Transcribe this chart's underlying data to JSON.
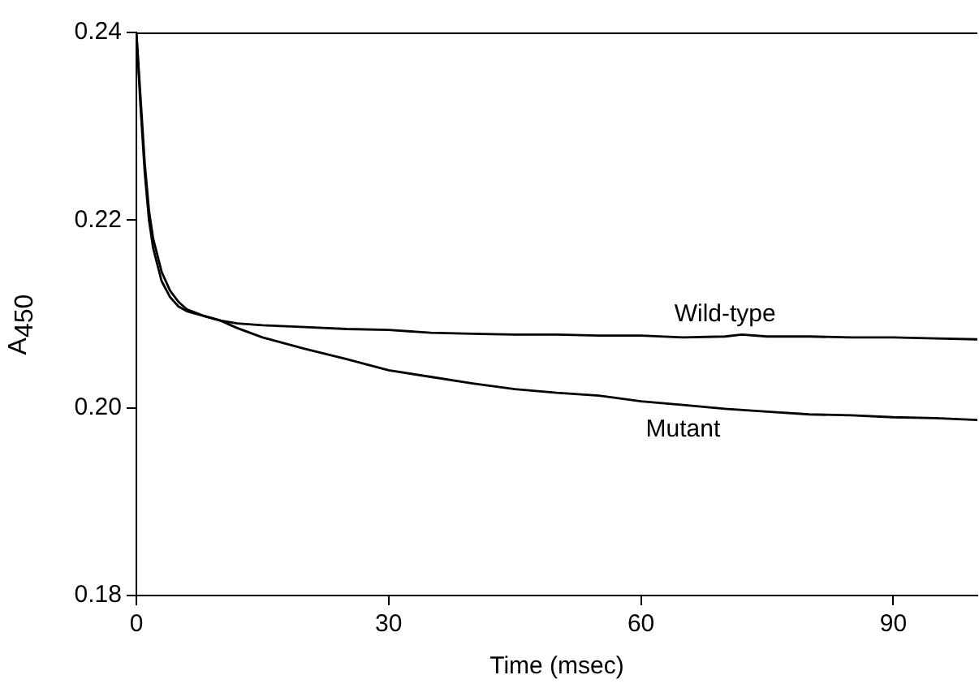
{
  "chart_data": {
    "type": "line",
    "xlabel": "Time (msec)",
    "ylabel": "A$_{450}$",
    "xlim": [
      0,
      100
    ],
    "xticks": [
      0,
      30,
      60,
      90
    ],
    "ylim": [
      0.18,
      0.24
    ],
    "yticks": [
      {
        "value": 0.18,
        "label": "0.18"
      },
      {
        "value": 0.2,
        "label": "0.20"
      },
      {
        "value": 0.22,
        "label": "0.22"
      },
      {
        "value": 0.24,
        "label": "0.24"
      }
    ],
    "grid": false,
    "legend": false,
    "marker": "none",
    "line_style": "solid",
    "series": [
      {
        "name": "Wild-type",
        "color": "#000000",
        "x": [
          0,
          0.5,
          1,
          1.5,
          2,
          3,
          4,
          5,
          6,
          8,
          10,
          12,
          15,
          20,
          25,
          30,
          35,
          40,
          45,
          50,
          55,
          60,
          65,
          70,
          72,
          75,
          80,
          85,
          90,
          95,
          100
        ],
        "values": [
          0.24,
          0.233,
          0.226,
          0.221,
          0.218,
          0.2145,
          0.2125,
          0.2113,
          0.2105,
          0.2098,
          0.2093,
          0.209,
          0.2088,
          0.2086,
          0.2084,
          0.2083,
          0.208,
          0.2079,
          0.2078,
          0.2078,
          0.2077,
          0.2077,
          0.2075,
          0.2076,
          0.2078,
          0.2076,
          0.2076,
          0.2075,
          0.2075,
          0.2074,
          0.2073
        ]
      },
      {
        "name": "Mutant",
        "color": "#000000",
        "x": [
          0,
          0.5,
          1,
          1.5,
          2,
          3,
          4,
          5,
          6,
          8,
          10,
          12,
          15,
          20,
          25,
          30,
          35,
          40,
          45,
          50,
          55,
          60,
          65,
          70,
          75,
          80,
          85,
          90,
          95,
          100
        ],
        "values": [
          0.24,
          0.232,
          0.225,
          0.22,
          0.217,
          0.2135,
          0.2118,
          0.2108,
          0.2103,
          0.2098,
          0.2093,
          0.2085,
          0.2075,
          0.2063,
          0.2052,
          0.204,
          0.2033,
          0.2026,
          0.202,
          0.2016,
          0.2013,
          0.2007,
          0.2003,
          0.1999,
          0.1996,
          0.1993,
          0.1992,
          0.199,
          0.1989,
          0.1987
        ]
      }
    ]
  }
}
